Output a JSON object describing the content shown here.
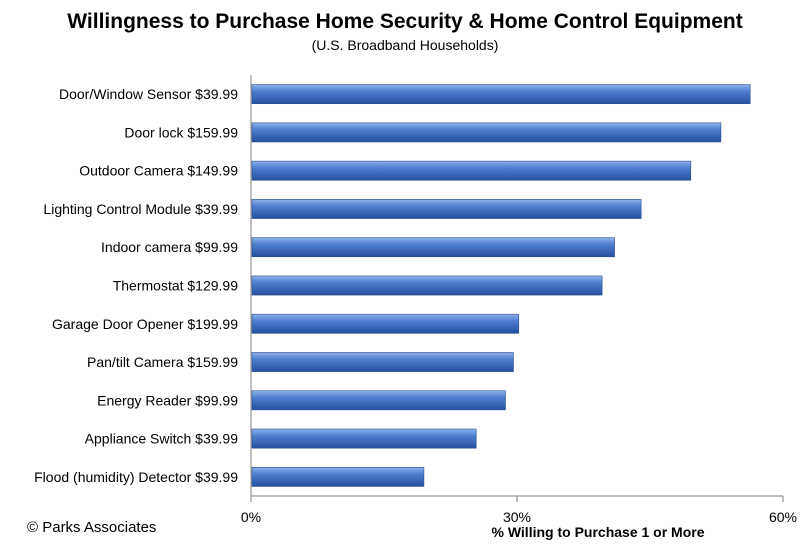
{
  "chart_data": {
    "type": "bar",
    "orientation": "horizontal",
    "title": "Willingness to Purchase Home Security & Home Control Equipment",
    "subtitle": "(U.S. Broadband Households)",
    "xlabel": "% Willing to Purchase 1 or More",
    "ylabel": "",
    "xlim": [
      0,
      60
    ],
    "xticks": [
      0,
      30,
      60
    ],
    "xtick_labels": [
      "0%",
      "30%",
      "60%"
    ],
    "grid": false,
    "categories": [
      "Door/Window Sensor $39.99",
      "Door lock $159.99",
      "Outdoor Camera $149.99",
      "Lighting Control Module $39.99",
      "Indoor camera $99.99",
      "Thermostat $129.99",
      "Garage Door Opener $199.99",
      "Pan/tilt Camera $159.99",
      "Energy Reader $99.99",
      "Appliance Switch $39.99",
      "Flood (humidity) Detector $39.99"
    ],
    "values": [
      56.3,
      53.0,
      49.6,
      44.0,
      41.0,
      39.6,
      30.2,
      29.6,
      28.7,
      25.4,
      19.5
    ],
    "bar_color": "#3f6fc0"
  },
  "credit": "© Parks Associates"
}
